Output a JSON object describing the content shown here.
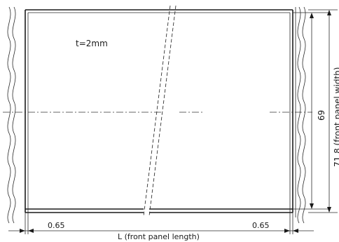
{
  "drawing": {
    "thickness_note": "t=2mm",
    "dim_height_inner": "69",
    "dim_height_outer": "71.8 (front panel width)",
    "dim_left_margin": "0.65",
    "dim_right_margin": "0.65",
    "dim_length": "L (front panel length)"
  }
}
